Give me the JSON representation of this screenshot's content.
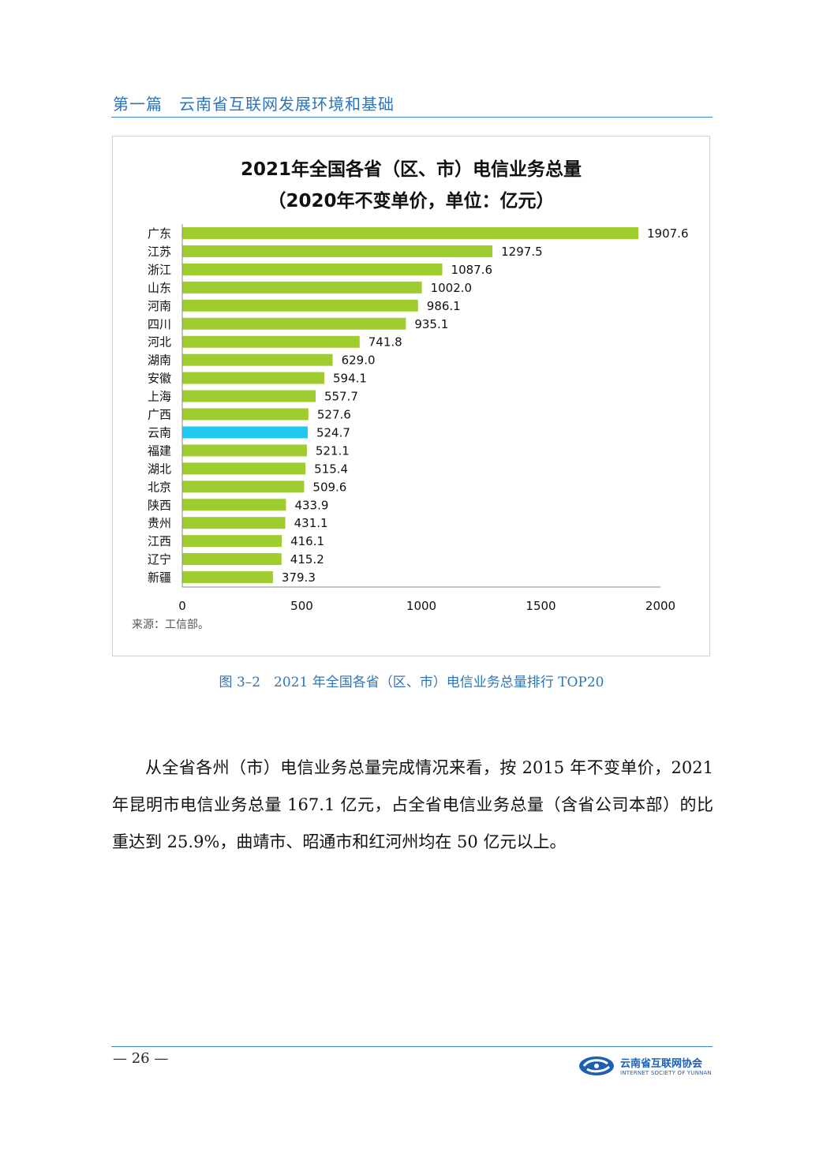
{
  "header": {
    "title": "第一篇　云南省互联网发展环境和基础"
  },
  "chart": {
    "title_line1": "2021年全国各省（区、市）电信业务总量",
    "title_line2": "（2020年不变单价，单位：亿元）",
    "source": "来源：工信部。"
  },
  "chart_data": {
    "type": "bar",
    "orientation": "horizontal",
    "title": "2021年全国各省（区、市）电信业务总量（2020年不变单价，单位：亿元）",
    "categories": [
      "广东",
      "江苏",
      "浙江",
      "山东",
      "河南",
      "四川",
      "河北",
      "湖南",
      "安徽",
      "上海",
      "广西",
      "云南",
      "福建",
      "湖北",
      "北京",
      "陕西",
      "贵州",
      "江西",
      "辽宁",
      "新疆"
    ],
    "values": [
      1907.6,
      1297.5,
      1087.6,
      1002.0,
      986.1,
      935.1,
      741.8,
      629.0,
      594.1,
      557.7,
      527.6,
      524.7,
      521.1,
      515.4,
      509.6,
      433.9,
      431.1,
      416.1,
      415.2,
      379.3
    ],
    "value_labels": [
      "1907.6",
      "1297.5",
      "1087.6",
      "1002.0",
      "986.1",
      "935.1",
      "741.8",
      "629.0",
      "594.1",
      "557.7",
      "527.6",
      "524.7",
      "521.1",
      "515.4",
      "509.6",
      "433.9",
      "431.1",
      "416.1",
      "415.2",
      "379.3"
    ],
    "highlight_category": "云南",
    "colors": {
      "default": "#9fcd2f",
      "highlight": "#1fc8ef"
    },
    "xlim": [
      0,
      2000
    ],
    "x_ticks": [
      0,
      500,
      1000,
      1500,
      2000
    ],
    "xlabel": "",
    "ylabel": "",
    "grid": false,
    "legend": "none"
  },
  "figure": {
    "caption": "图 3–2　2021 年全国各省（区、市）电信业务总量排行 TOP20"
  },
  "body": {
    "paragraph": "从全省各州（市）电信业务总量完成情况来看，按 2015 年不变单价，2021 年昆明市电信业务总量 167.1 亿元，占全省电信业务总量（含省公司本部）的比重达到 25.9%，曲靖市、昭通市和红河州均在 50 亿元以上。"
  },
  "footer": {
    "page_number": "— 26 —",
    "logo_cn": "云南省互联网协会",
    "logo_en": "INTERNET SOCIETY OF YUNNAN"
  }
}
